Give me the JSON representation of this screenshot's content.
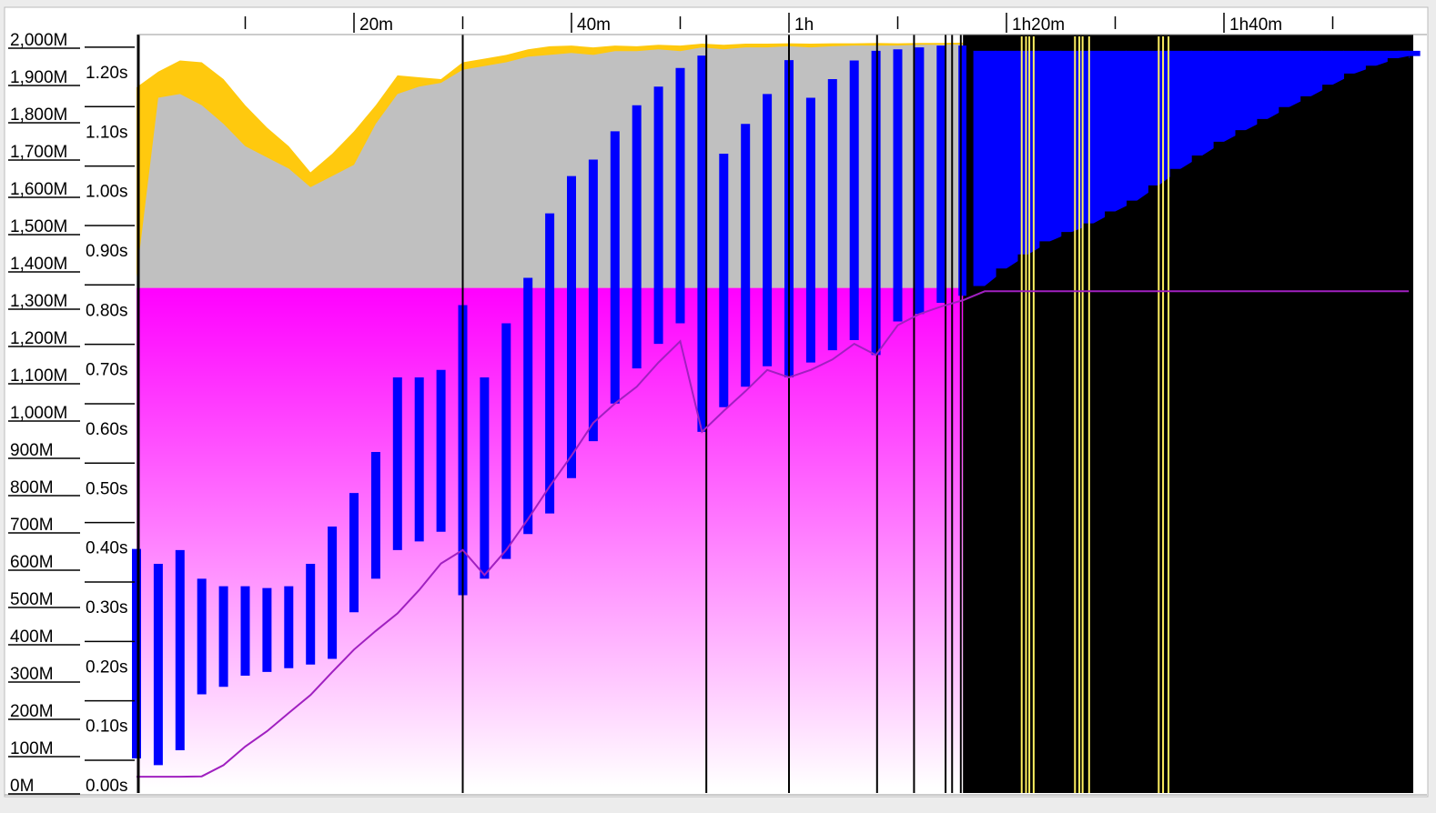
{
  "chart_data": {
    "type": "memory-timeline",
    "x": [
      0,
      2,
      4,
      6,
      8,
      10,
      12,
      14,
      16,
      18,
      20,
      22,
      24,
      26,
      28,
      30,
      32,
      34,
      36,
      38,
      40,
      42,
      44,
      46,
      48,
      50,
      52,
      54,
      56,
      58,
      60,
      62,
      64,
      66,
      68,
      70,
      72,
      74,
      76,
      78,
      80,
      82,
      84,
      86,
      88,
      90,
      92,
      94,
      96,
      98,
      100,
      102,
      104,
      106,
      108,
      110,
      112,
      114,
      116,
      117
    ],
    "xlim": [
      0,
      117.2
    ],
    "xticks": [
      {
        "value": 20,
        "label": "20m"
      },
      {
        "value": 40,
        "label": "40m"
      },
      {
        "value": 60,
        "label": "1h"
      },
      {
        "value": 80,
        "label": "1h20m"
      },
      {
        "value": 100,
        "label": "1h40m"
      }
    ],
    "xminor": [
      10,
      30,
      50,
      70,
      90,
      110
    ],
    "ylim": [
      0,
      2000
    ],
    "yticks": [
      {
        "value": 0,
        "label": "0M"
      },
      {
        "value": 100,
        "label": "100M"
      },
      {
        "value": 200,
        "label": "200M"
      },
      {
        "value": 300,
        "label": "300M"
      },
      {
        "value": 400,
        "label": "400M"
      },
      {
        "value": 500,
        "label": "500M"
      },
      {
        "value": 600,
        "label": "600M"
      },
      {
        "value": 700,
        "label": "700M"
      },
      {
        "value": 800,
        "label": "800M"
      },
      {
        "value": 900,
        "label": "900M"
      },
      {
        "value": 1000,
        "label": "1,000M"
      },
      {
        "value": 1100,
        "label": "1,100M"
      },
      {
        "value": 1200,
        "label": "1,200M"
      },
      {
        "value": 1300,
        "label": "1,300M"
      },
      {
        "value": 1400,
        "label": "1,400M"
      },
      {
        "value": 1500,
        "label": "1,500M"
      },
      {
        "value": 1600,
        "label": "1,600M"
      },
      {
        "value": 1700,
        "label": "1,700M"
      },
      {
        "value": 1800,
        "label": "1,800M"
      },
      {
        "value": 1900,
        "label": "1,900M"
      },
      {
        "value": 2000,
        "label": "2,000M"
      }
    ],
    "y2lim": [
      0,
      1.255
    ],
    "y2ticks": [
      {
        "value": 0,
        "label": "0.00s"
      },
      {
        "value": 0.1,
        "label": "0.10s"
      },
      {
        "value": 0.2,
        "label": "0.20s"
      },
      {
        "value": 0.3,
        "label": "0.30s"
      },
      {
        "value": 0.4,
        "label": "0.40s"
      },
      {
        "value": 0.5,
        "label": "0.50s"
      },
      {
        "value": 0.6,
        "label": "0.60s"
      },
      {
        "value": 0.7,
        "label": "0.70s"
      },
      {
        "value": 0.8,
        "label": "0.80s"
      },
      {
        "value": 0.9,
        "label": "0.90s"
      },
      {
        "value": 1.0,
        "label": "1.00s"
      },
      {
        "value": 1.1,
        "label": "1.10s"
      },
      {
        "value": 1.2,
        "label": "1.20s"
      }
    ],
    "yellow": {
      "color": "#ffc90e",
      "values": [
        1878,
        1920,
        1950,
        1945,
        1900,
        1830,
        1770,
        1720,
        1650,
        1700,
        1760,
        1830,
        1910,
        1905,
        1900,
        1945,
        1955,
        1965,
        1980,
        1988,
        1990,
        1985,
        1990,
        1988,
        1992,
        1990,
        1995,
        1992,
        1995,
        1995,
        1996,
        1995,
        1996,
        1996,
        1997,
        1996,
        1997,
        1997,
        1998,
        null,
        null,
        null,
        null,
        null,
        null,
        null,
        null,
        null,
        null,
        null,
        null,
        null,
        null,
        null,
        null,
        null,
        null,
        null,
        null,
        null
      ]
    },
    "gray": {
      "color": "#c0c0c0",
      "values": [
        1370,
        1850,
        1860,
        1830,
        1780,
        1720,
        1690,
        1660,
        1610,
        1640,
        1670,
        1780,
        1860,
        1880,
        1890,
        1925,
        1935,
        1945,
        1960,
        1965,
        1970,
        1965,
        1975,
        1975,
        1980,
        1975,
        1985,
        1980,
        1985,
        1985,
        1988,
        1985,
        1988,
        1990,
        1990,
        1990,
        1992,
        1992,
        1993,
        null,
        null,
        null,
        null,
        null,
        null,
        null,
        null,
        null,
        null,
        null,
        null,
        null,
        null,
        null,
        null,
        null,
        null,
        null,
        null,
        null
      ]
    },
    "committed": {
      "color": "#ff00ff",
      "values": [
        1340,
        1340,
        1340,
        1340,
        1340,
        1340,
        1340,
        1340,
        1340,
        1340,
        1340,
        1340,
        1340,
        1340,
        1340,
        1340,
        1340,
        1340,
        1340,
        1340,
        1340,
        1340,
        1340,
        1340,
        1340,
        1340,
        1340,
        1340,
        1340,
        1340,
        1340,
        1340,
        1340,
        1340,
        1340,
        1340,
        1340,
        1340,
        1340,
        null,
        null,
        null,
        null,
        null,
        null,
        null,
        null,
        null,
        null,
        null,
        null,
        null,
        null,
        null,
        null,
        null,
        null,
        null,
        null,
        null
      ]
    },
    "blue_peak": {
      "color": "#0000ff",
      "values": [
        640,
        600,
        637,
        560,
        540,
        540,
        535,
        540,
        600,
        700,
        790,
        900,
        1100,
        1100,
        1120,
        1294,
        1100,
        1245,
        1367,
        1540,
        1640,
        1684,
        1760,
        1830,
        1880,
        1930,
        1963,
        1700,
        1780,
        1860,
        1951,
        1850,
        1900,
        1950,
        1976,
        1980,
        1985,
        1990,
        1990,
        1976,
        1976,
        1976,
        1976,
        1976,
        1976,
        1976,
        1976,
        1976,
        1976,
        1976,
        1976,
        1976,
        1976,
        1976,
        1976,
        1976,
        1976,
        1976,
        1976,
        1976
      ]
    },
    "blue_trough": {
      "values": [
        78,
        60,
        100,
        250,
        270,
        300,
        310,
        320,
        330,
        345,
        470,
        560,
        637,
        660,
        686,
        516,
        560,
        613,
        680,
        735,
        830,
        929,
        1030,
        1124,
        1190,
        1245,
        954,
        1020,
        1075,
        1130,
        1100,
        1140,
        1173,
        1200,
        1160,
        1250,
        1270,
        1300,
        1319,
        1345,
        1392,
        1430,
        1465,
        1490,
        1513,
        1545,
        1574,
        1615,
        1659,
        1695,
        1732,
        1763,
        1793,
        1825,
        1854,
        1885,
        1915,
        1936,
        1956,
        1962
      ]
    },
    "black": {
      "color": "#000000",
      "values": [
        null,
        null,
        null,
        null,
        null,
        null,
        null,
        null,
        null,
        null,
        null,
        null,
        null,
        null,
        null,
        null,
        null,
        null,
        null,
        null,
        null,
        null,
        null,
        null,
        null,
        null,
        null,
        null,
        null,
        null,
        null,
        null,
        null,
        null,
        null,
        null,
        null,
        null,
        null,
        1345,
        1392,
        1430,
        1465,
        1490,
        1513,
        1545,
        1574,
        1615,
        1659,
        1695,
        1732,
        1763,
        1793,
        1825,
        1854,
        1885,
        1915,
        1936,
        1956,
        1962
      ]
    },
    "purple": {
      "color": "#a020c0",
      "values": [
        29,
        29,
        29,
        30,
        60,
        110,
        151,
        200,
        248,
        310,
        370,
        420,
        467,
        530,
        601,
        637,
        570,
        637,
        720,
        808,
        890,
        978,
        1030,
        1075,
        1140,
        1197,
        954,
        1010,
        1063,
        1120,
        1100,
        1120,
        1148,
        1190,
        1160,
        1240,
        1270,
        1290,
        1307,
        1331,
        1331,
        1331,
        1331,
        1331,
        1331,
        1331,
        1331,
        1331,
        1331,
        1331,
        1331,
        1331,
        1331,
        1331,
        1331,
        1331,
        1331,
        1331,
        1331,
        1331
      ]
    },
    "events": {
      "color": "#000000",
      "values": [
        30.0,
        52.4,
        60.0,
        68.1,
        71.5,
        74.4,
        75.0,
        75.8,
        76.4
      ]
    },
    "flashes": {
      "color": "#ffef60",
      "values": [
        81.4,
        81.8,
        82.1,
        82.5,
        86.3,
        86.7,
        87.0,
        87.6,
        94.0,
        94.4,
        94.9
      ]
    }
  }
}
